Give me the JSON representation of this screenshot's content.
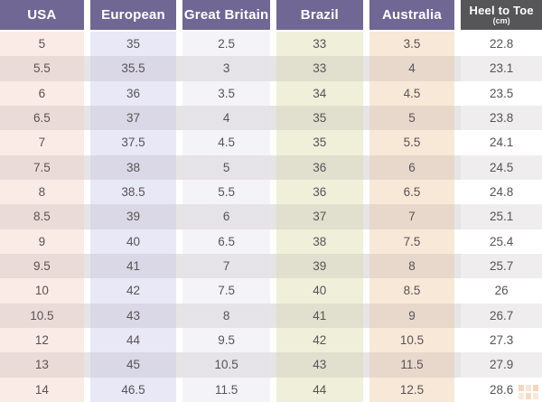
{
  "chart_data": {
    "type": "table",
    "columns": [
      {
        "label": "USA"
      },
      {
        "label": "European"
      },
      {
        "label": "Great Britain"
      },
      {
        "label": "Brazil"
      },
      {
        "label": "Australia"
      },
      {
        "label": "Heel to Toe",
        "unit": "(cm)"
      }
    ],
    "rows": [
      [
        "5",
        "35",
        "2.5",
        "33",
        "3.5",
        "22.8"
      ],
      [
        "5.5",
        "35.5",
        "3",
        "33",
        "4",
        "23.1"
      ],
      [
        "6",
        "36",
        "3.5",
        "34",
        "4.5",
        "23.5"
      ],
      [
        "6.5",
        "37",
        "4",
        "35",
        "5",
        "23.8"
      ],
      [
        "7",
        "37.5",
        "4.5",
        "35",
        "5.5",
        "24.1"
      ],
      [
        "7.5",
        "38",
        "5",
        "36",
        "6",
        "24.5"
      ],
      [
        "8",
        "38.5",
        "5.5",
        "36",
        "6.5",
        "24.8"
      ],
      [
        "8.5",
        "39",
        "6",
        "37",
        "7",
        "25.1"
      ],
      [
        "9",
        "40",
        "6.5",
        "38",
        "7.5",
        "25.4"
      ],
      [
        "9.5",
        "41",
        "7",
        "39",
        "8",
        "25.7"
      ],
      [
        "10",
        "42",
        "7.5",
        "40",
        "8.5",
        "26"
      ],
      [
        "10.5",
        "43",
        "8",
        "41",
        "9",
        "26.7"
      ],
      [
        "12",
        "44",
        "9.5",
        "42",
        "10.5",
        "27.3"
      ],
      [
        "13",
        "45",
        "10.5",
        "43",
        "11.5",
        "27.9"
      ],
      [
        "14",
        "46.5",
        "11.5",
        "44",
        "12.5",
        "28.6"
      ]
    ],
    "layout_hints": {
      "grid": "off",
      "striped_rows": true,
      "column_gutters": true
    }
  },
  "style": {
    "header_bg": "#706794",
    "header_last_bg": "#565658",
    "header_text": "#ffffff",
    "cell_text": "#585356",
    "column_tints": [
      "#fbebe6",
      "#e8e8f6",
      "#f4f4f8",
      "#f0efda",
      "#f8e8d8",
      "#ffffff"
    ],
    "alt_row_gutter": "#e7e4e5",
    "alt_row_overlay": "rgba(95,80,88,0.10)",
    "watermark_color": "#e89a5e"
  },
  "watermark": {
    "icon": "grid-logo"
  }
}
